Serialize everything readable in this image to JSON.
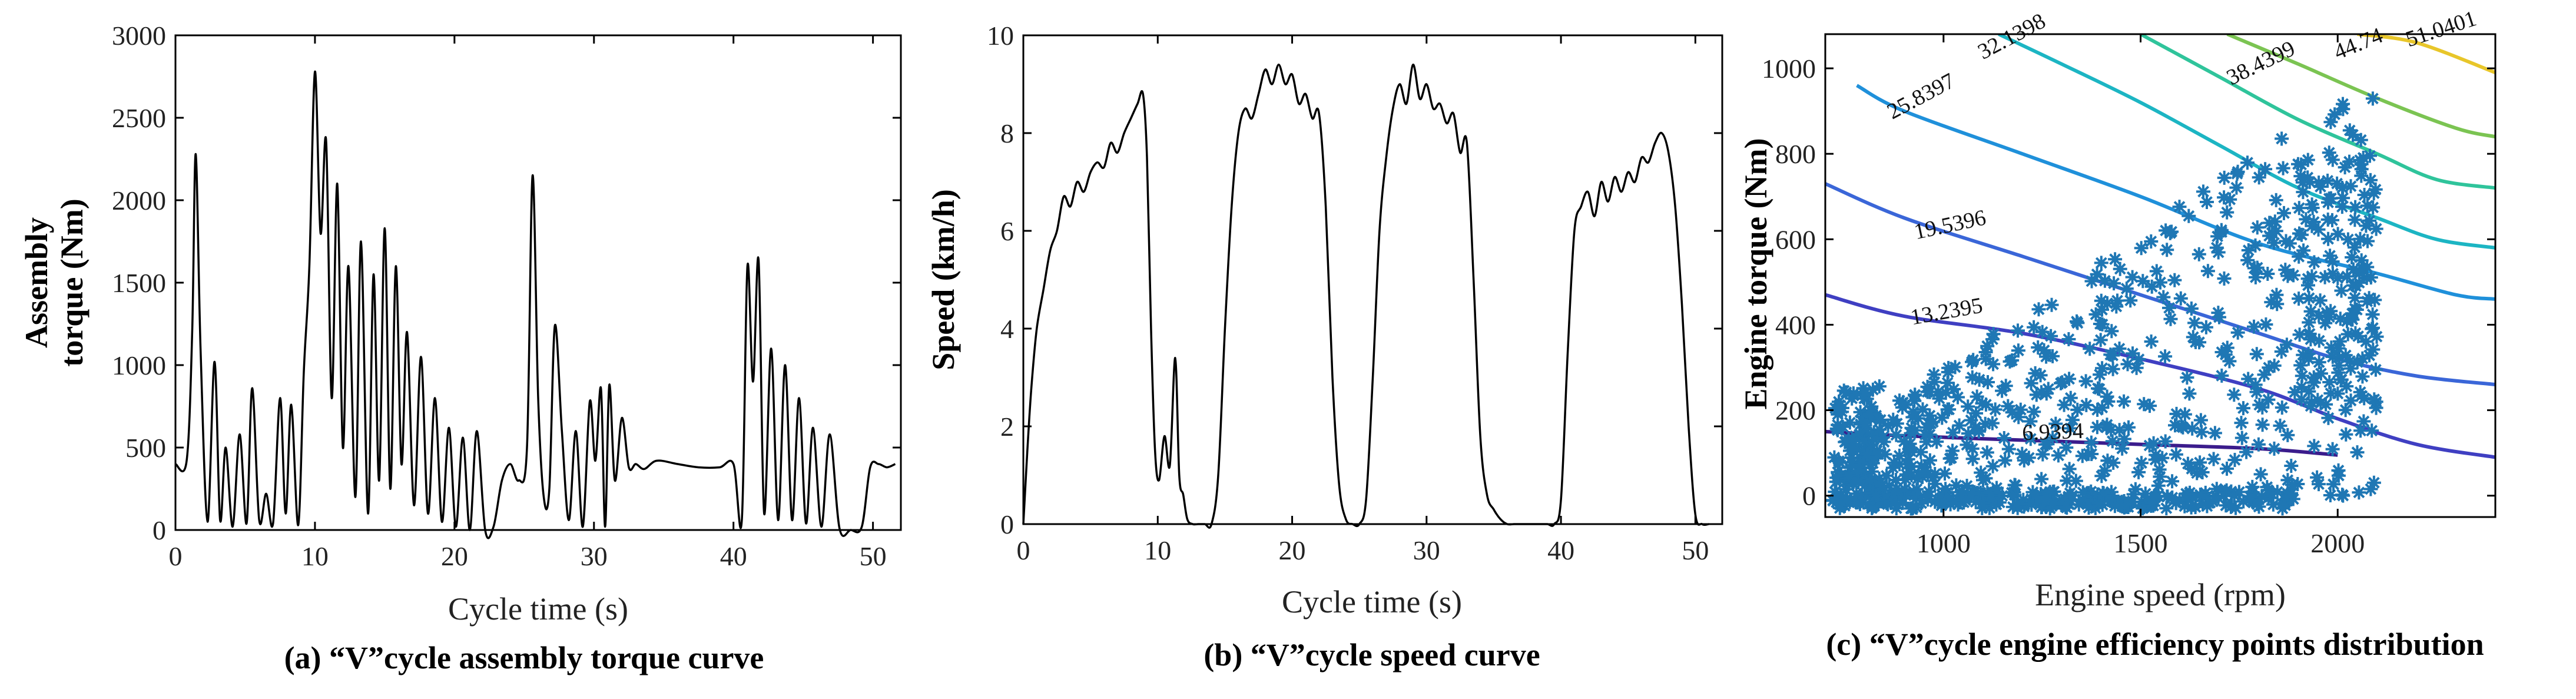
{
  "chart_data": [
    {
      "type": "line",
      "title": "",
      "caption": "(a) “V”cycle assembly torque curve",
      "xlabel": "Cycle time (s)",
      "ylabel_line1": "Assembly",
      "ylabel_line2": "torque (Nm)",
      "xlim": [
        0,
        52
      ],
      "ylim": [
        0,
        3000
      ],
      "xticks": [
        0,
        10,
        20,
        30,
        40,
        50
      ],
      "yticks": [
        0,
        500,
        1000,
        1500,
        2000,
        2500,
        3000
      ],
      "series": [
        {
          "name": "Assembly torque",
          "x": [
            0,
            0.8,
            1.2,
            1.45,
            1.8,
            2.3,
            2.8,
            3.2,
            3.6,
            4.1,
            4.6,
            5.1,
            5.5,
            6.0,
            6.5,
            7.0,
            7.5,
            7.9,
            8.3,
            8.8,
            9.2,
            9.6,
            10.0,
            10.4,
            10.8,
            11.2,
            11.6,
            12.0,
            12.4,
            12.9,
            13.3,
            13.8,
            14.2,
            14.6,
            15.0,
            15.4,
            15.8,
            16.2,
            16.6,
            17.1,
            17.6,
            18.1,
            18.6,
            19.1,
            19.6,
            20.1,
            20.6,
            21.1,
            21.6,
            22.2,
            22.8,
            23.4,
            24.0,
            24.6,
            25.2,
            25.6,
            26.0,
            26.4,
            26.8,
            27.2,
            27.7,
            28.2,
            28.7,
            29.2,
            29.7,
            30.1,
            30.5,
            30.8,
            31.1,
            31.5,
            32.0,
            32.5,
            33.0,
            33.6,
            34.5,
            36.0,
            37.5,
            39.0,
            40.0,
            40.6,
            41.0,
            41.4,
            41.8,
            42.2,
            42.7,
            43.2,
            43.7,
            44.2,
            44.7,
            45.2,
            45.7,
            46.3,
            46.9,
            47.6,
            48.4,
            49.2,
            49.8,
            50.4,
            51.0,
            51.6
          ],
          "values": [
            400,
            420,
            1200,
            2280,
            1100,
            50,
            1020,
            60,
            500,
            20,
            580,
            40,
            860,
            60,
            220,
            40,
            800,
            100,
            760,
            30,
            960,
            1600,
            2780,
            1800,
            2360,
            800,
            2100,
            500,
            1600,
            200,
            1750,
            100,
            1550,
            300,
            1830,
            250,
            1600,
            400,
            1200,
            150,
            1050,
            100,
            800,
            50,
            620,
            20,
            560,
            0,
            600,
            0,
            20,
            300,
            400,
            300,
            500,
            2150,
            800,
            200,
            250,
            1240,
            600,
            60,
            600,
            20,
            780,
            420,
            860,
            20,
            880,
            300,
            680,
            380,
            400,
            370,
            420,
            400,
            380,
            380,
            400,
            60,
            1600,
            900,
            1640,
            100,
            1100,
            60,
            1000,
            60,
            800,
            40,
            620,
            20,
            580,
            10,
            0,
            20,
            380,
            400,
            380,
            400
          ]
        }
      ]
    },
    {
      "type": "line",
      "title": "",
      "caption": "(b)  “V”cycle speed curve",
      "xlabel": "Cycle time (s)",
      "ylabel": "Speed (km/h)",
      "xlim": [
        0,
        52
      ],
      "ylim": [
        0,
        10
      ],
      "xticks": [
        0,
        10,
        20,
        30,
        40,
        50
      ],
      "yticks": [
        0,
        2,
        4,
        6,
        8,
        10
      ],
      "series": [
        {
          "name": "Speed",
          "x": [
            0,
            0.3,
            0.6,
            1.0,
            1.5,
            2.0,
            2.5,
            3.0,
            3.5,
            4.0,
            4.5,
            5.0,
            5.5,
            6.0,
            6.5,
            7.0,
            7.5,
            8.0,
            8.5,
            8.9,
            9.2,
            9.5,
            9.8,
            10.1,
            10.5,
            10.9,
            11.3,
            11.6,
            11.9,
            12.2,
            12.6,
            13.0,
            13.5,
            14.0,
            14.5,
            15.0,
            15.5,
            16.0,
            16.5,
            17.0,
            17.5,
            18.0,
            18.5,
            19.0,
            19.5,
            20.0,
            20.5,
            21.0,
            21.5,
            22.0,
            22.5,
            23.0,
            23.5,
            24.0,
            24.5,
            25.0,
            25.5,
            26.0,
            26.5,
            27.0,
            27.5,
            28.0,
            28.5,
            29.0,
            29.5,
            30.0,
            30.5,
            31.0,
            31.5,
            32.0,
            32.5,
            33.0,
            33.5,
            34.0,
            34.5,
            35.0,
            35.5,
            36.0,
            36.5,
            37.0,
            37.5,
            38.0,
            38.5,
            39.0,
            39.5,
            40.0,
            40.5,
            41.0,
            41.5,
            42.0,
            42.5,
            43.0,
            43.5,
            44.0,
            44.5,
            45.0,
            45.5,
            46.0,
            46.5,
            47.0,
            47.5,
            48.0,
            48.5,
            49.0,
            49.5,
            50.0,
            50.5,
            51.0
          ],
          "values": [
            0,
            1.5,
            2.8,
            4.0,
            4.8,
            5.6,
            6.0,
            6.7,
            6.5,
            7.0,
            6.8,
            7.2,
            7.4,
            7.3,
            7.8,
            7.6,
            8.0,
            8.3,
            8.6,
            8.8,
            7.5,
            4.0,
            1.5,
            0.9,
            1.8,
            1.2,
            3.4,
            1.0,
            0.6,
            0.1,
            0,
            0,
            0,
            0,
            1.0,
            4.0,
            6.5,
            8.0,
            8.5,
            8.3,
            8.8,
            9.3,
            9.0,
            9.4,
            9.0,
            9.2,
            8.6,
            8.8,
            8.3,
            8.4,
            6.5,
            3.0,
            0.8,
            0.1,
            0,
            0,
            0.5,
            3.0,
            6.0,
            7.5,
            8.5,
            9.0,
            8.6,
            9.4,
            8.7,
            9.0,
            8.5,
            8.6,
            8.2,
            8.4,
            7.6,
            7.8,
            5.0,
            1.8,
            0.6,
            0.3,
            0.1,
            0,
            0,
            0,
            0,
            0,
            0,
            0,
            0,
            0.5,
            3.5,
            6.0,
            6.5,
            6.8,
            6.3,
            7.0,
            6.6,
            7.1,
            6.8,
            7.2,
            7.0,
            7.5,
            7.4,
            7.8,
            8.0,
            7.6,
            6.5,
            4.5,
            2.0,
            0.2,
            0,
            0
          ]
        }
      ]
    },
    {
      "type": "scatter",
      "title": "",
      "caption": "(c) “V”cycle engine efficiency points distribution",
      "xlabel": "Engine speed (rpm)",
      "ylabel": "Engine torque (Nm)",
      "xlim": [
        700,
        2400
      ],
      "ylim": [
        -50,
        1080
      ],
      "xticks": [
        1000,
        1500,
        2000
      ],
      "yticks": [
        0,
        200,
        400,
        600,
        800,
        1000
      ],
      "contour_levels": [
        {
          "label": "6.9394",
          "color": "#3b1c8c"
        },
        {
          "label": "13.2395",
          "color": "#3f3fc2"
        },
        {
          "label": "19.5396",
          "color": "#3a66d8"
        },
        {
          "label": "25.8397",
          "color": "#1f90da"
        },
        {
          "label": "32.1398",
          "color": "#1cb5c3"
        },
        {
          "label": "38.4399",
          "color": "#2fc49b"
        },
        {
          "label": "44.74",
          "color": "#7bc452"
        },
        {
          "label": "51.0401",
          "color": "#e8c62a"
        }
      ],
      "scatter_color": "#1f77b4",
      "marker": "*"
    }
  ]
}
